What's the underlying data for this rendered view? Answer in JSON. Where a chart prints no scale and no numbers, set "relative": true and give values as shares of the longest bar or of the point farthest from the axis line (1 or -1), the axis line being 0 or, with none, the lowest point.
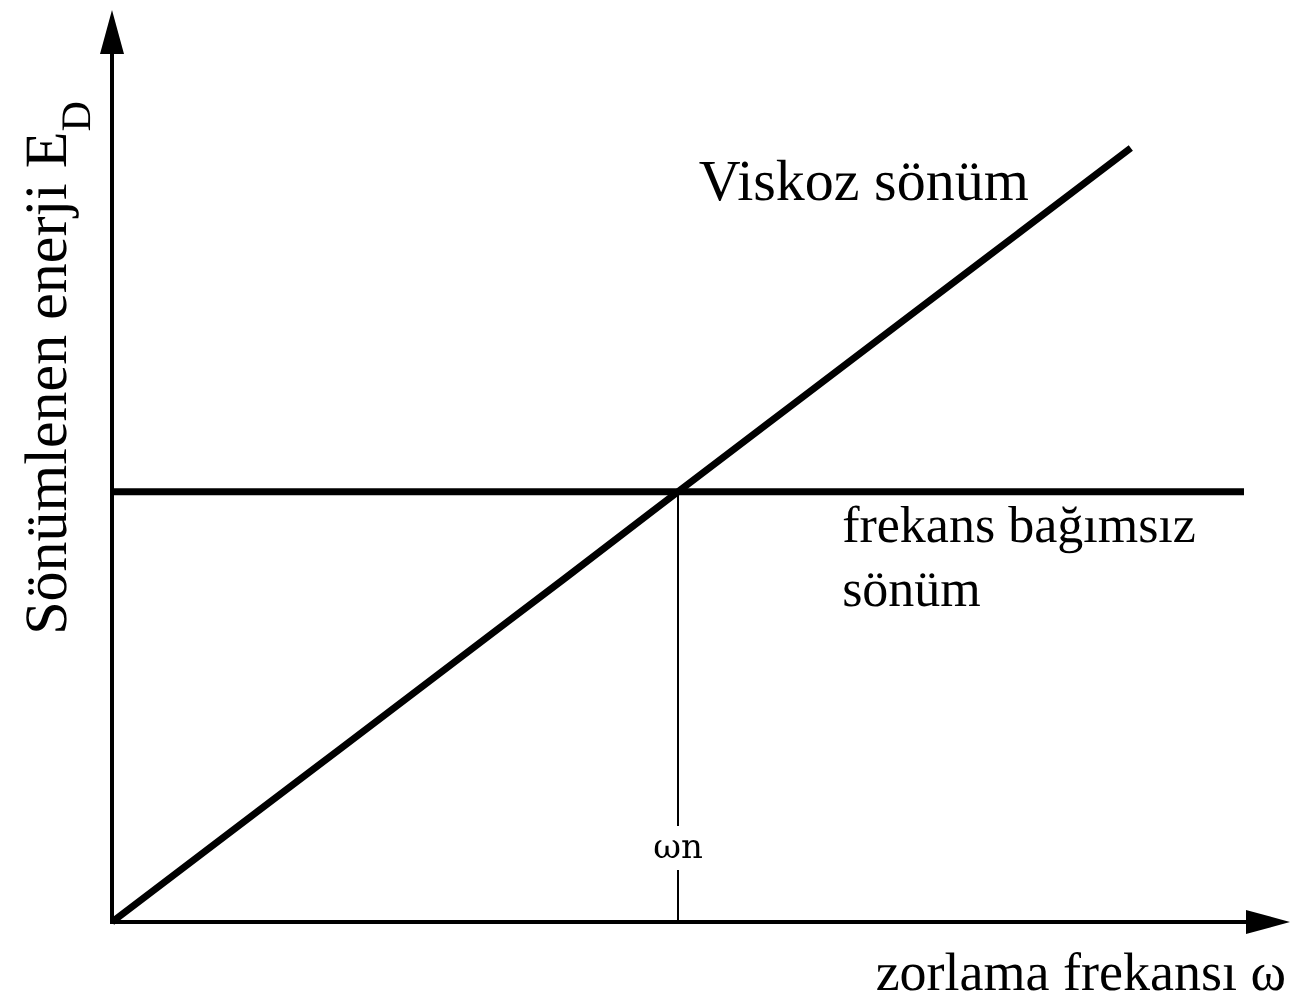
{
  "chart_data": {
    "type": "line",
    "relative": true,
    "categories": [
      null,
      null,
      null,
      null,
      null,
      null,
      null,
      null,
      null,
      null,
      null
    ],
    "xlabel": "zorlama frekansı ω",
    "ylabel": "Sönümlenen enerji E$_{D}$",
    "series": [
      {
        "name": "Viskoz sönüm",
        "color": "#000000",
        "values": [
          0,
          0.111,
          0.222,
          0.333,
          0.444,
          0.556,
          0.667,
          0.778,
          0.889,
          1,
          null
        ]
      },
      {
        "name": "frekans bağımsız sönüm",
        "color": "#000000",
        "values": [
          0.556,
          0.556,
          0.556,
          0.556,
          0.556,
          0.556,
          0.556,
          0.556,
          0.556,
          0.556,
          0.556
        ]
      }
    ],
    "annotations": [
      "ωn"
    ]
  }
}
